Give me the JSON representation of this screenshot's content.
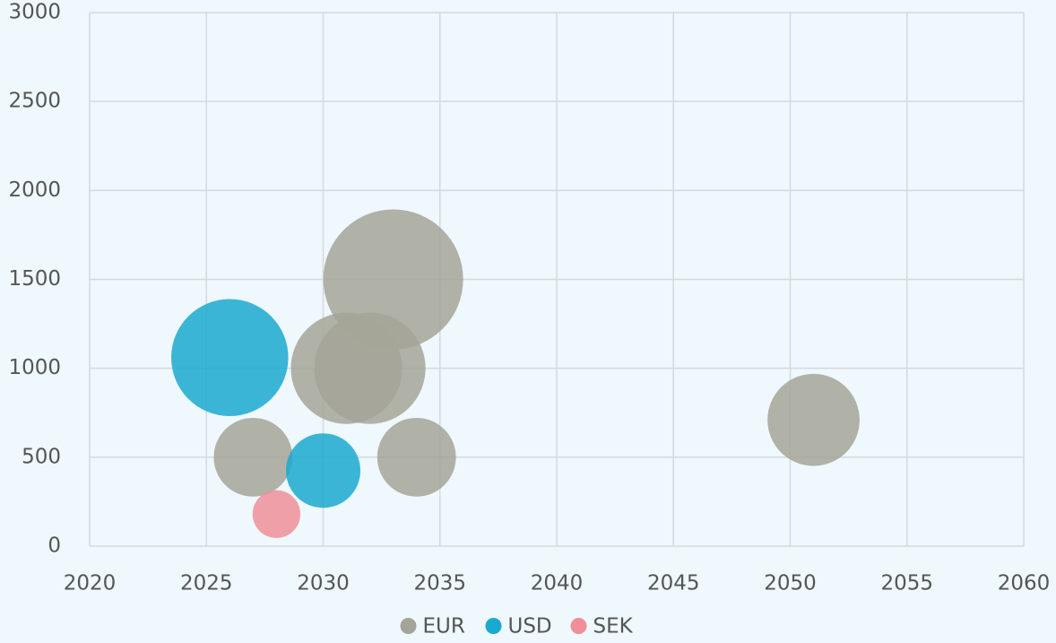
{
  "chart_data": {
    "type": "bubble",
    "series": [
      {
        "name": "EUR",
        "color": "#a5a498",
        "x": [
          2027,
          2031,
          2032,
          2033,
          2034,
          2051
        ],
        "values": [
          500,
          1000,
          1000,
          1500,
          500,
          710
        ],
        "sizes": [
          1900,
          3800,
          3800,
          6000,
          1900,
          2600
        ]
      },
      {
        "name": "USD",
        "color": "#1aa9cf",
        "x": [
          2026,
          2030
        ],
        "values": [
          1060,
          425
        ],
        "sizes": [
          4200,
          1700
        ]
      },
      {
        "name": "SEK",
        "color": "#ee8f99",
        "x": [
          2028
        ],
        "values": [
          180
        ],
        "sizes": [
          700
        ]
      }
    ],
    "xlim": [
      2020,
      2060
    ],
    "xticks": [
      2020,
      2025,
      2030,
      2035,
      2040,
      2045,
      2050,
      2055,
      2060
    ],
    "ylim": [
      0,
      3000
    ],
    "yticks": [
      0,
      500,
      1000,
      1500,
      2000,
      2500,
      3000
    ],
    "grid": true,
    "legend": "bottom"
  }
}
